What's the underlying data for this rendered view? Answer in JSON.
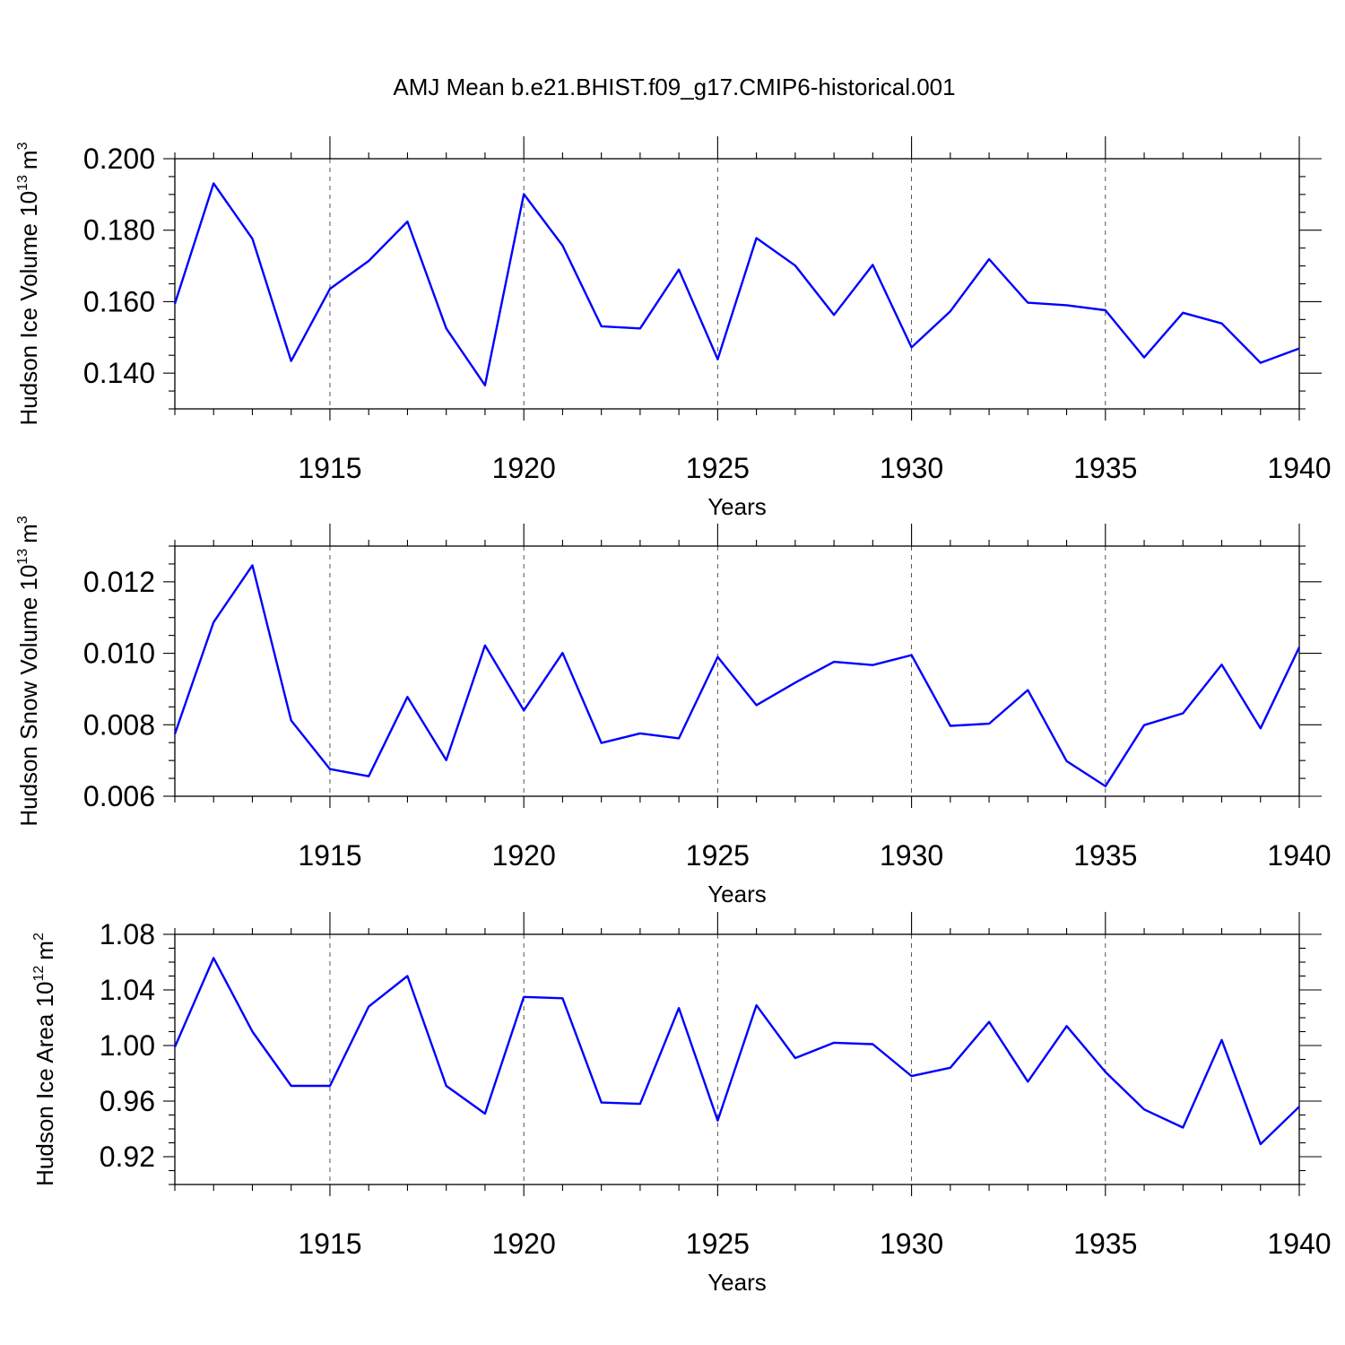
{
  "page_title": "AMJ Mean b.e21.BHIST.f09_g17.CMIP6-historical.001",
  "series_color": "#0000ff",
  "chart_data": [
    {
      "type": "line",
      "title": "AMJ Mean b.e21.BHIST.f09_g17.CMIP6-historical.001",
      "xlabel": "Years",
      "ylabel": {
        "main": "Hudson Ice Volume 10",
        "exp": "13",
        "unit": "m",
        "unit_exp": "3"
      },
      "xlim": [
        1911,
        1940
      ],
      "ylim": [
        0.13,
        0.2
      ],
      "xticks": [
        1915,
        1920,
        1925,
        1930,
        1935,
        1940
      ],
      "xtick_labels": [
        "1915",
        "1920",
        "1925",
        "1930",
        "1935",
        "1940"
      ],
      "yticks": [
        0.14,
        0.16,
        0.18,
        0.2
      ],
      "ytick_labels": [
        "0.140",
        "0.160",
        "0.180",
        "0.200"
      ],
      "x": [
        1911,
        1912,
        1913,
        1914,
        1915,
        1916,
        1917,
        1918,
        1919,
        1920,
        1921,
        1922,
        1923,
        1924,
        1925,
        1926,
        1927,
        1928,
        1929,
        1930,
        1931,
        1932,
        1933,
        1934,
        1935,
        1936,
        1937,
        1938,
        1939,
        1940
      ],
      "series": [
        {
          "name": "Hudson Ice Volume",
          "values": [
            0.1594,
            0.1931,
            0.1776,
            0.1434,
            0.1636,
            0.1714,
            0.1824,
            0.1525,
            0.1366,
            0.1901,
            0.1757,
            0.1531,
            0.1525,
            0.169,
            0.1439,
            0.1778,
            0.1701,
            0.1563,
            0.1703,
            0.1472,
            0.1573,
            0.1719,
            0.1597,
            0.159,
            0.1576,
            0.1444,
            0.1569,
            0.1539,
            0.1429,
            0.1469
          ]
        }
      ]
    },
    {
      "type": "line",
      "xlabel": "Years",
      "ylabel": {
        "main": "Hudson Snow Volume 10",
        "exp": "13",
        "unit": "m",
        "unit_exp": "3"
      },
      "xlim": [
        1911,
        1940
      ],
      "ylim": [
        0.006,
        0.013
      ],
      "xticks": [
        1915,
        1920,
        1925,
        1930,
        1935,
        1940
      ],
      "xtick_labels": [
        "1915",
        "1920",
        "1925",
        "1930",
        "1935",
        "1940"
      ],
      "yticks": [
        0.006,
        0.008,
        0.01,
        0.012
      ],
      "ytick_labels": [
        "0.006",
        "0.008",
        "0.010",
        "0.012"
      ],
      "x": [
        1911,
        1912,
        1913,
        1914,
        1915,
        1916,
        1917,
        1918,
        1919,
        1920,
        1921,
        1922,
        1923,
        1924,
        1925,
        1926,
        1927,
        1928,
        1929,
        1930,
        1931,
        1932,
        1933,
        1934,
        1935,
        1936,
        1937,
        1938,
        1939,
        1940
      ],
      "series": [
        {
          "name": "Hudson Snow Volume",
          "values": [
            0.00774,
            0.01087,
            0.01246,
            0.00812,
            0.00676,
            0.00656,
            0.00878,
            0.00701,
            0.01022,
            0.0084,
            0.01001,
            0.00749,
            0.00776,
            0.00762,
            0.0099,
            0.00855,
            0.00918,
            0.00976,
            0.00967,
            0.00995,
            0.00797,
            0.00803,
            0.00897,
            0.00698,
            0.00628,
            0.00799,
            0.00832,
            0.00968,
            0.0079,
            0.01017
          ]
        }
      ]
    },
    {
      "type": "line",
      "xlabel": "Years",
      "ylabel": {
        "main": "Hudson Ice Area 10",
        "exp": "12",
        "unit": "m",
        "unit_exp": "2"
      },
      "xlim": [
        1911,
        1940
      ],
      "ylim": [
        0.9,
        1.08
      ],
      "xticks": [
        1915,
        1920,
        1925,
        1930,
        1935,
        1940
      ],
      "xtick_labels": [
        "1915",
        "1920",
        "1925",
        "1930",
        "1935",
        "1940"
      ],
      "yticks": [
        0.92,
        0.96,
        1.0,
        1.04,
        1.08
      ],
      "ytick_labels": [
        "0.92",
        "0.96",
        "1.00",
        "1.04",
        "1.08"
      ],
      "x": [
        1911,
        1912,
        1913,
        1914,
        1915,
        1916,
        1917,
        1918,
        1919,
        1920,
        1921,
        1922,
        1923,
        1924,
        1925,
        1926,
        1927,
        1928,
        1929,
        1930,
        1931,
        1932,
        1933,
        1934,
        1935,
        1936,
        1937,
        1938,
        1939,
        1940
      ],
      "series": [
        {
          "name": "Hudson Ice Area",
          "values": [
            0.999,
            1.063,
            1.01,
            0.971,
            0.971,
            1.028,
            1.05,
            0.971,
            0.951,
            1.035,
            1.034,
            0.959,
            0.958,
            1.027,
            0.946,
            1.029,
            0.991,
            1.002,
            1.001,
            0.978,
            0.984,
            1.017,
            0.974,
            1.014,
            0.981,
            0.954,
            0.941,
            1.004,
            0.929,
            0.956
          ]
        }
      ]
    }
  ]
}
